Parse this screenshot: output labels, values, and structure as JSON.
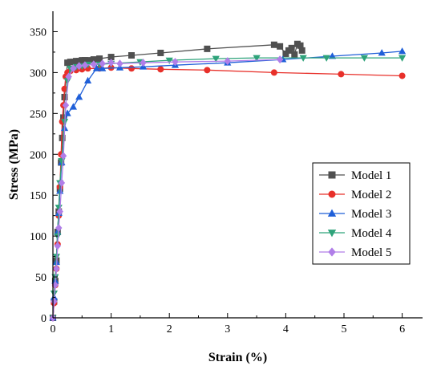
{
  "chart_data": {
    "type": "line",
    "title": "",
    "xlabel": "Strain (%)",
    "ylabel": "Stress (MPa)",
    "xlim": [
      0,
      6.35
    ],
    "ylim": [
      0,
      375
    ],
    "xticks": [
      0,
      1,
      2,
      3,
      4,
      5,
      6
    ],
    "yticks": [
      0,
      50,
      100,
      150,
      200,
      250,
      300,
      350
    ],
    "xtick_labels": [
      "0",
      "1",
      "2",
      "3",
      "4",
      "5",
      "6"
    ],
    "ytick_labels": [
      "0",
      "50",
      "100",
      "150",
      "200",
      "250",
      "300",
      "350"
    ],
    "grid": false,
    "legend_position": "right",
    "series": [
      {
        "name": "Model 1",
        "color": "#505050",
        "marker": "square",
        "x": [
          0,
          0.02,
          0.04,
          0.06,
          0.08,
          0.1,
          0.12,
          0.14,
          0.16,
          0.18,
          0.2,
          0.25,
          0.3,
          0.35,
          0.4,
          0.45,
          0.5,
          0.55,
          0.6,
          0.7,
          0.8,
          1.0,
          1.35,
          1.85,
          2.65,
          3.8,
          3.9,
          4.0,
          4.05,
          4.1,
          4.15,
          4.2,
          4.25,
          4.28
        ],
        "y": [
          0,
          20,
          45,
          70,
          105,
          130,
          158,
          190,
          220,
          245,
          270,
          312,
          313,
          313,
          314,
          314,
          315,
          315,
          315,
          316,
          317,
          319,
          321,
          324,
          329,
          334,
          332,
          323,
          327,
          330,
          322,
          335,
          333,
          327
        ]
      },
      {
        "name": "Model 2",
        "color": "#e8302a",
        "marker": "circle",
        "x": [
          0,
          0.02,
          0.04,
          0.06,
          0.08,
          0.1,
          0.12,
          0.14,
          0.16,
          0.18,
          0.2,
          0.22,
          0.25,
          0.3,
          0.4,
          0.5,
          0.6,
          0.8,
          1.0,
          1.35,
          1.85,
          2.65,
          3.8,
          4.95,
          6.0
        ],
        "y": [
          0,
          18,
          40,
          60,
          90,
          125,
          160,
          200,
          240,
          260,
          280,
          295,
          300,
          302,
          303,
          304,
          305,
          305,
          306,
          305,
          304,
          303,
          300,
          298,
          296
        ]
      },
      {
        "name": "Model 3",
        "color": "#1f5fd8",
        "marker": "triangle-up",
        "x": [
          0,
          0.02,
          0.04,
          0.06,
          0.08,
          0.1,
          0.12,
          0.15,
          0.2,
          0.25,
          0.35,
          0.45,
          0.6,
          0.75,
          0.85,
          1.15,
          1.55,
          2.1,
          3.0,
          3.95,
          4.8,
          5.65,
          6.0
        ],
        "y": [
          0,
          25,
          45,
          68,
          105,
          128,
          155,
          190,
          232,
          250,
          258,
          270,
          290,
          305,
          305,
          306,
          307,
          309,
          312,
          316,
          320,
          324,
          326
        ]
      },
      {
        "name": "Model 4",
        "color": "#2ea37a",
        "marker": "triangle-down",
        "x": [
          0,
          0.02,
          0.04,
          0.06,
          0.08,
          0.1,
          0.12,
          0.15,
          0.2,
          0.25,
          0.3,
          0.4,
          0.5,
          0.6,
          0.8,
          1.0,
          1.5,
          2.0,
          2.8,
          3.5,
          4.3,
          4.7,
          5.35,
          6.0
        ],
        "y": [
          0,
          30,
          50,
          75,
          100,
          135,
          165,
          192,
          240,
          290,
          305,
          307,
          308,
          310,
          310,
          311,
          313,
          315,
          317,
          318,
          318,
          318,
          318,
          318
        ]
      },
      {
        "name": "Model 5",
        "color": "#b07ee8",
        "marker": "diamond",
        "x": [
          0,
          0.02,
          0.04,
          0.06,
          0.08,
          0.1,
          0.12,
          0.15,
          0.18,
          0.22,
          0.27,
          0.35,
          0.45,
          0.55,
          0.7,
          0.85,
          1.0,
          1.15,
          1.55,
          2.1,
          3.0,
          3.9
        ],
        "y": [
          0,
          20,
          40,
          60,
          88,
          110,
          130,
          165,
          198,
          260,
          295,
          305,
          308,
          309,
          310,
          311,
          312,
          311,
          312,
          313,
          314,
          316
        ]
      }
    ]
  }
}
